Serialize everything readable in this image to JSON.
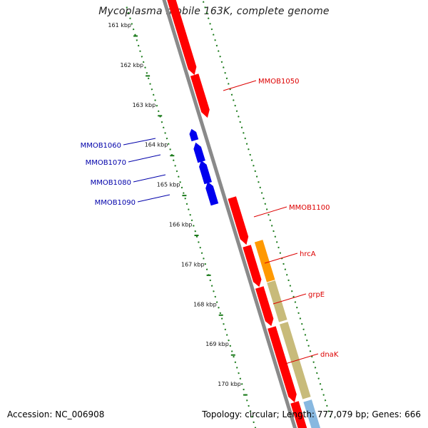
{
  "title": "Mycoplasma mobile 163K, complete genome",
  "footer": {
    "accession": "Accession: NC_006908",
    "stats": "Topology: circular; Length: 777,079 bp; Genes: 666"
  },
  "colors": {
    "backbone": "#8a8a8a",
    "tick": "#1a7a1a",
    "forward_cds": "#ff0000",
    "reverse_cds": "#0000ee",
    "orange_gene": "#ff9900",
    "khaki_gene": "#c8bb7a",
    "light_blue_gene": "#88b8e0",
    "forward_label": "#dd0000",
    "reverse_label": "#0000aa"
  },
  "scale_labels": [
    {
      "kbp": 161,
      "text": "161 kbp"
    },
    {
      "kbp": 162,
      "text": "162 kbp"
    },
    {
      "kbp": 163,
      "text": "163 kbp"
    },
    {
      "kbp": 164,
      "text": "164 kbp"
    },
    {
      "kbp": 165,
      "text": "165 kbp"
    },
    {
      "kbp": 166,
      "text": "166 kbp"
    },
    {
      "kbp": 167,
      "text": "167 kbp"
    },
    {
      "kbp": 168,
      "text": "168 kbp"
    },
    {
      "kbp": 169,
      "text": "169 kbp"
    },
    {
      "kbp": 170,
      "text": "170 kbp"
    }
  ],
  "genes": [
    {
      "label": "MMOB1050",
      "strand": "forward",
      "color_key": "forward_cds"
    },
    {
      "label": "MMOB1060",
      "strand": "reverse",
      "color_key": "reverse_cds"
    },
    {
      "label": "MMOB1070",
      "strand": "reverse",
      "color_key": "reverse_cds"
    },
    {
      "label": "MMOB1080",
      "strand": "reverse",
      "color_key": "reverse_cds"
    },
    {
      "label": "MMOB1090",
      "strand": "reverse",
      "color_key": "reverse_cds"
    },
    {
      "label": "MMOB1100",
      "strand": "forward",
      "color_key": "forward_cds"
    },
    {
      "label": "hrcA",
      "strand": "forward",
      "color_key": "forward_cds"
    },
    {
      "label": "grpE",
      "strand": "forward",
      "color_key": "forward_cds"
    },
    {
      "label": "dnaK",
      "strand": "forward",
      "color_key": "forward_cds"
    }
  ]
}
